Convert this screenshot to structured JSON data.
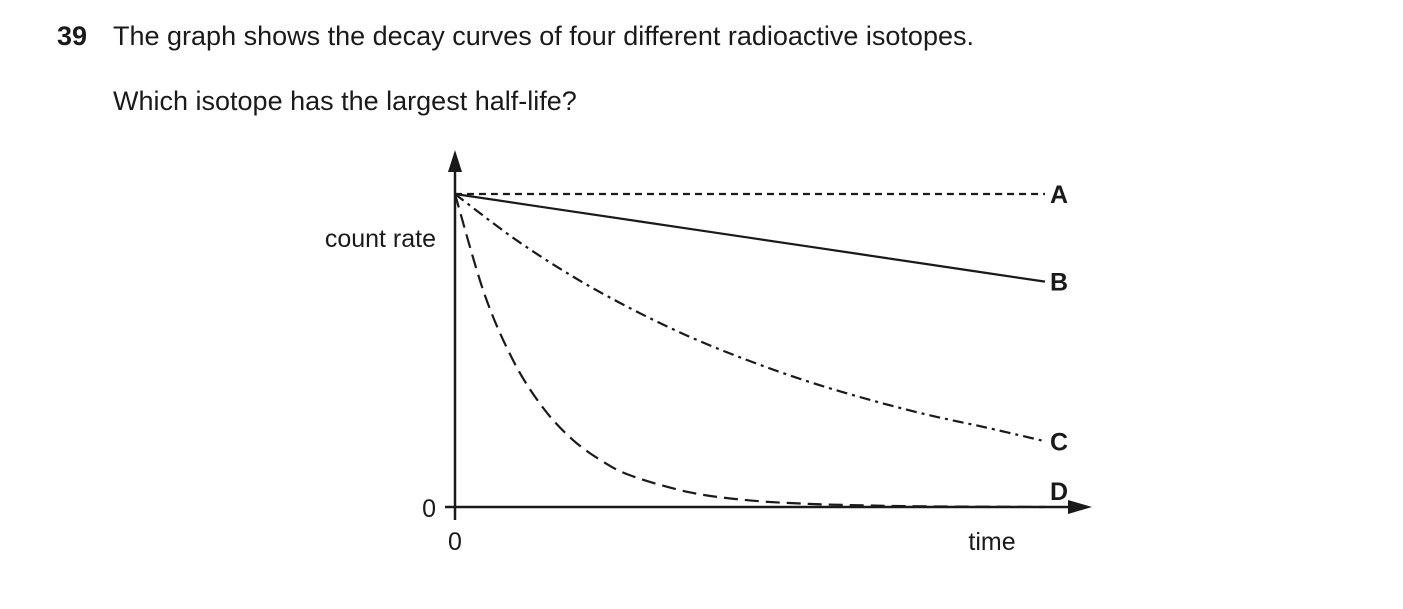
{
  "question": {
    "number": "39",
    "text": "The graph shows the decay curves of four different radioactive isotopes.",
    "prompt": "Which isotope has the largest half-life?"
  },
  "chart_data": {
    "type": "line",
    "title": "",
    "xlabel": "time",
    "ylabel": "count rate",
    "x_origin_label": "0",
    "y_origin_label": "0",
    "xlim": [
      0,
      10
    ],
    "ylim": [
      0,
      1
    ],
    "grid": false,
    "legend": "labels at line ends",
    "series": [
      {
        "name": "A",
        "style": "short-dash",
        "x": [
          0,
          2,
          4,
          6,
          8,
          10
        ],
        "y": [
          1,
          1,
          1,
          1,
          1,
          1
        ]
      },
      {
        "name": "B",
        "style": "solid",
        "x": [
          0,
          2,
          4,
          6,
          8,
          10
        ],
        "y": [
          1,
          0.944,
          0.888,
          0.832,
          0.776,
          0.72
        ]
      },
      {
        "name": "C",
        "style": "dash-dot",
        "x": [
          0,
          1,
          2,
          3,
          4,
          5,
          6,
          7,
          8,
          9,
          10
        ],
        "y": [
          1,
          0.858,
          0.736,
          0.632,
          0.542,
          0.466,
          0.4,
          0.344,
          0.295,
          0.254,
          0.21
        ]
      },
      {
        "name": "D",
        "style": "long-dash",
        "x": [
          0,
          0.5,
          1,
          1.5,
          2,
          2.5,
          3,
          4,
          5,
          6,
          7,
          8,
          10
        ],
        "y": [
          1,
          0.68,
          0.463,
          0.315,
          0.214,
          0.146,
          0.099,
          0.046,
          0.021,
          0.01,
          0.005,
          0.002,
          0.0
        ]
      }
    ]
  }
}
